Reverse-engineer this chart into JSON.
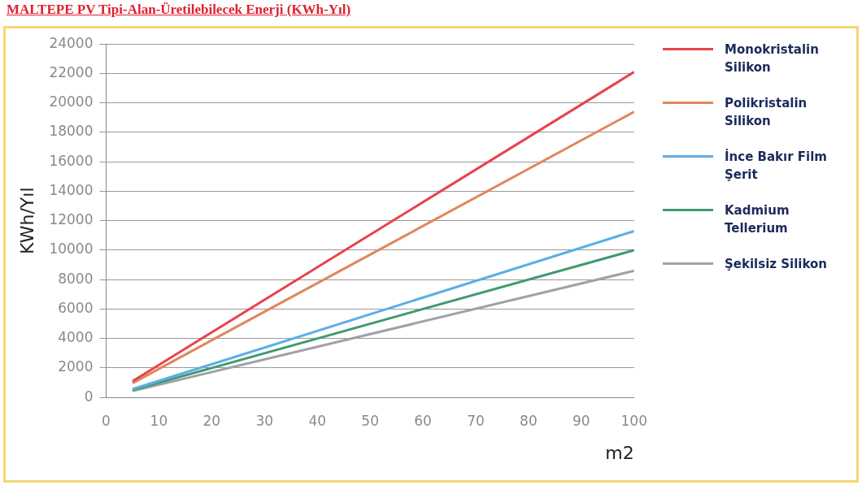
{
  "chart_data": {
    "type": "line",
    "title": "MALTEPE PV Tipi-Alan-Üretilebilecek Enerji (KWh-Yıl)",
    "xlabel": "m2",
    "ylabel": "KWh/Yıl",
    "x": [
      5,
      100
    ],
    "series": [
      {
        "name": "Monokristalin Silikon",
        "color": "#e8434b",
        "values": [
          1100,
          22100
        ]
      },
      {
        "name": "Polikristalin Silikon",
        "color": "#e0875a",
        "values": [
          970,
          19400
        ]
      },
      {
        "name": "İnce Bakır Film Şerit",
        "color": "#5aaee8",
        "values": [
          560,
          11300
        ]
      },
      {
        "name": "Kadmium Tellerium",
        "color": "#3f9a6e",
        "values": [
          500,
          10000
        ]
      },
      {
        "name": "Şekilsiz Silikon",
        "color": "#a0a0a8",
        "values": [
          430,
          8600
        ]
      }
    ],
    "xlim": [
      0,
      100
    ],
    "xticks": [
      0,
      10,
      20,
      30,
      40,
      50,
      60,
      70,
      80,
      90,
      100
    ],
    "ylim": [
      0,
      24000
    ],
    "yticks": [
      0,
      2000,
      4000,
      6000,
      8000,
      10000,
      12000,
      14000,
      16000,
      18000,
      20000,
      22000,
      24000
    ],
    "grid": "y",
    "legend": "right",
    "marker": "none",
    "line_style": "solid"
  }
}
